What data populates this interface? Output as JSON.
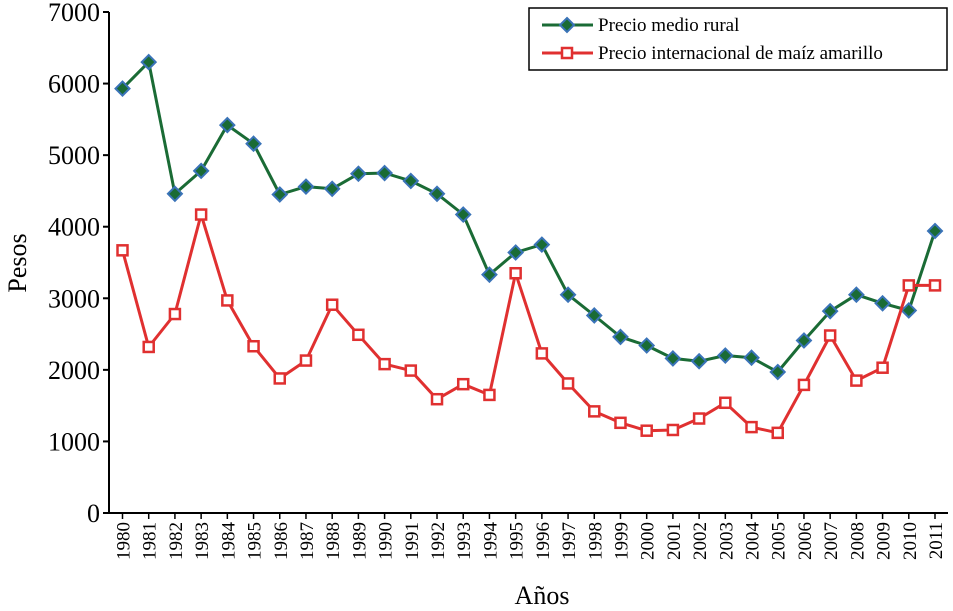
{
  "chart_data": {
    "type": "line",
    "title": "",
    "xlabel": "Años",
    "ylabel": "Pesos",
    "ylim": [
      0,
      7000
    ],
    "yticks": [
      0,
      1000,
      2000,
      3000,
      4000,
      5000,
      6000,
      7000
    ],
    "grid": false,
    "legend_position": "top-right",
    "x": [
      "1980",
      "1981",
      "1982",
      "1983",
      "1984",
      "1985",
      "1986",
      "1987",
      "1988",
      "1989",
      "1990",
      "1991",
      "1992",
      "1993",
      "1994",
      "1995",
      "1996",
      "1997",
      "1998",
      "1999",
      "2000",
      "2001",
      "2002",
      "2003",
      "2004",
      "2005",
      "2006",
      "2007",
      "2008",
      "2009",
      "2010",
      "2011"
    ],
    "series": [
      {
        "name": "Precio medio rural",
        "color": "#1a6b35",
        "marker": "diamond",
        "marker_color": "#3a73b8",
        "values": [
          5930,
          6300,
          4460,
          4780,
          5420,
          5160,
          4450,
          4560,
          4530,
          4740,
          4750,
          4640,
          4460,
          4170,
          3330,
          3640,
          3750,
          3050,
          2760,
          2460,
          2340,
          2160,
          2120,
          2200,
          2170,
          1970,
          2410,
          2820,
          3050,
          2930,
          2830,
          3940
        ]
      },
      {
        "name": "Precio internacional de maíz amarillo",
        "color": "#e03030",
        "marker": "square",
        "marker_color": "#e03030",
        "values": [
          3670,
          2320,
          2780,
          4170,
          2970,
          2330,
          1880,
          2130,
          2910,
          2490,
          2080,
          1990,
          1590,
          1800,
          1650,
          3350,
          2230,
          1810,
          1420,
          1260,
          1150,
          1160,
          1320,
          1540,
          1200,
          1120,
          1790,
          2480,
          1850,
          2030,
          3180,
          3180
        ]
      }
    ]
  }
}
